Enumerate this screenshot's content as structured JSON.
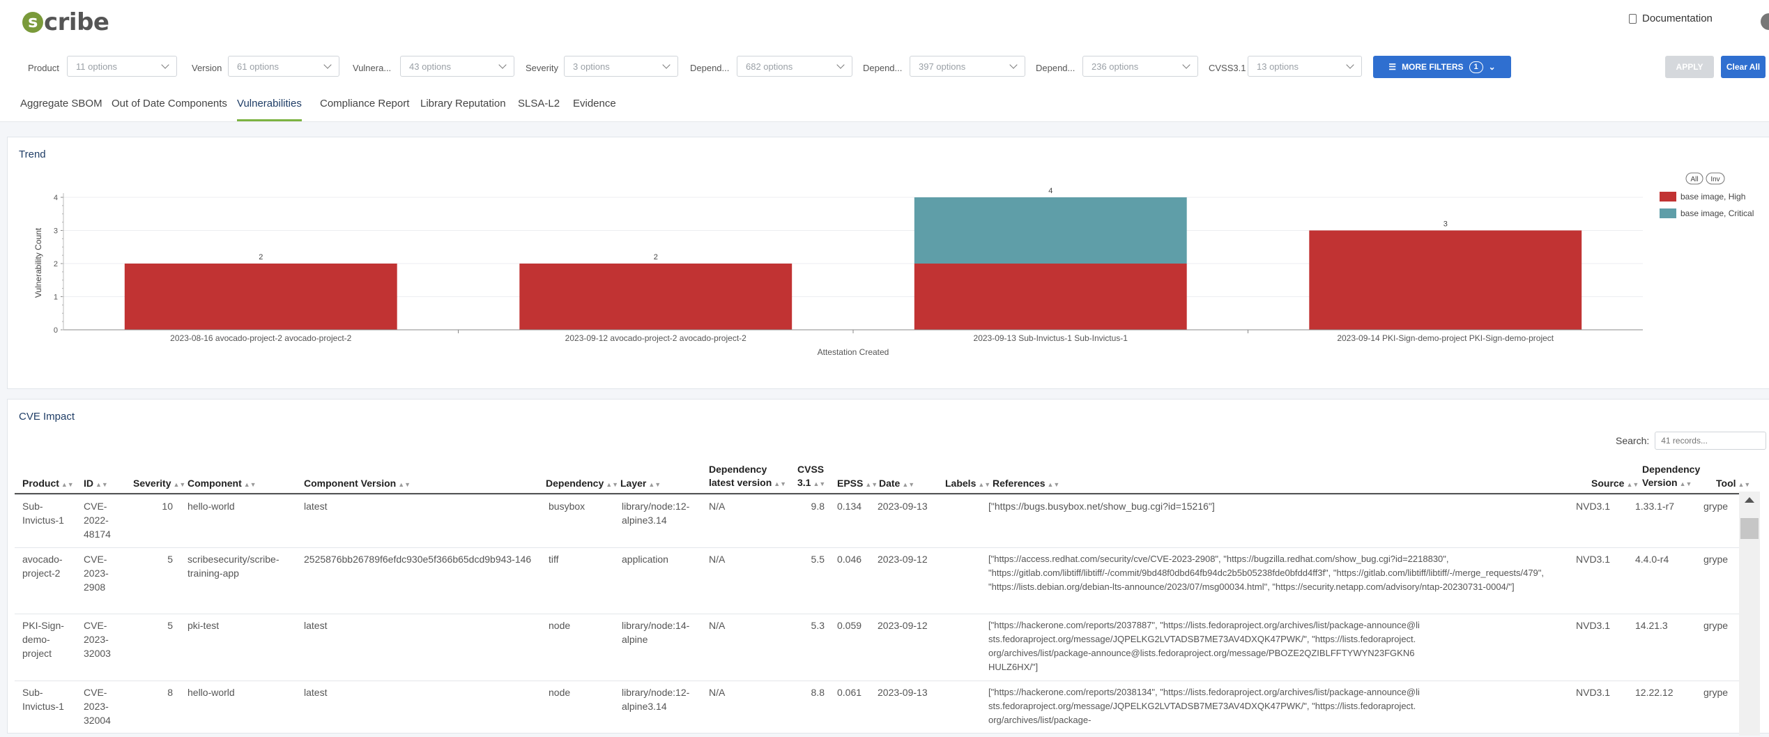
{
  "header": {
    "logo_text": "cribe",
    "logo_letter": "s",
    "documentation_label": "Documentation"
  },
  "filters": [
    {
      "label": "Product",
      "value": "11 options"
    },
    {
      "label": "Version",
      "value": "61 options"
    },
    {
      "label": "Vulnera...",
      "value": "43 options"
    },
    {
      "label": "Severity",
      "value": "3 options"
    },
    {
      "label": "Depend...",
      "value": "682 options"
    },
    {
      "label": "Depend...",
      "value": "397 options"
    },
    {
      "label": "Depend...",
      "value": "236 options"
    },
    {
      "label": "CVSS3.1",
      "value": "13 options"
    }
  ],
  "buttons": {
    "more_filters": "MORE FILTERS",
    "more_filters_count": "1",
    "apply": "APPLY",
    "clear_all": "Clear All"
  },
  "tabs": [
    {
      "label": "Aggregate SBOM"
    },
    {
      "label": "Out of Date Components"
    },
    {
      "label": "Vulnerabilities",
      "active": true
    },
    {
      "label": "Compliance Report"
    },
    {
      "label": "Library Reputation"
    },
    {
      "label": "SLSA-L2"
    },
    {
      "label": "Evidence"
    }
  ],
  "trend": {
    "title": "Trend",
    "legend_all": "All",
    "legend_inv": "Inv",
    "chart_data": {
      "type": "bar",
      "stacked": true,
      "categories": [
        "2023-08-16 avocado-project-2 avocado-project-2",
        "2023-09-12 avocado-project-2 avocado-project-2",
        "2023-09-13 Sub-Invictus-1 Sub-Invictus-1",
        "2023-09-14 PKI-Sign-demo-project PKI-Sign-demo-project"
      ],
      "series": [
        {
          "name": "base image, High",
          "color": "#c13333",
          "values": [
            2,
            2,
            2,
            3
          ]
        },
        {
          "name": "base image, Critical",
          "color": "#5f9ea8",
          "values": [
            0,
            0,
            2,
            0
          ]
        }
      ],
      "totals": [
        "2",
        "2",
        "4",
        "3"
      ],
      "xlabel": "Attestation Created",
      "ylabel": "Vulnerability Count",
      "ylim": [
        0,
        4
      ],
      "yticks": [
        "0",
        "1",
        "2",
        "3",
        "4"
      ],
      "legend_position": "top-right",
      "grid": true
    }
  },
  "cve": {
    "title": "CVE Impact",
    "search_label": "Search:",
    "search_placeholder": "41 records...",
    "columns": [
      "Product",
      "ID",
      "Severity",
      "Component",
      "Component Version",
      "Dependency",
      "Layer",
      "Dependency latest version",
      "CVSS 3.1",
      "EPSS",
      "Date",
      "Labels",
      "References",
      "Source",
      "Dependency Version",
      "Tool"
    ],
    "rows": [
      {
        "product": "Sub-Invictus-1",
        "id": "CVE-2022-48174",
        "severity": "10",
        "component": "hello-world",
        "component_version": "latest",
        "dependency": "busybox",
        "layer": "library/node:12-alpine3.14",
        "dep_latest": "N/A",
        "cvss": "9.8",
        "epss": "0.134",
        "date": "2023-09-13",
        "labels": "",
        "references": "[\"https://bugs.busybox.net/show_bug.cgi?id=15216\"]",
        "source": "NVD3.1",
        "dep_version": "1.33.1-r7",
        "tool": "grype"
      },
      {
        "product": "avocado-project-2",
        "id": "CVE-2023-2908",
        "severity": "5",
        "component": "scribesecurity/scribe-training-app",
        "component_version": "2525876bb26789f6efdc930e5f366b65dcd9b943-146",
        "dependency": "tiff",
        "layer": "application",
        "dep_latest": "N/A",
        "cvss": "5.5",
        "epss": "0.046",
        "date": "2023-09-12",
        "labels": "",
        "references": "[\"https://access.redhat.com/security/cve/CVE-2023-2908\", \"https://bugzilla.redhat.com/show_bug.cgi?id=2218830\", \"https://gitlab.com/libtiff/libtiff/-/commit/9bd48f0dbd64fb94dc2b5b05238fde0bfdd4ff3f\", \"https://gitlab.com/libtiff/libtiff/-/merge_requests/479\", \"https://lists.debian.org/debian-lts-announce/2023/07/msg00034.html\", \"https://security.netapp.com/advisory/ntap-20230731-0004/\"]",
        "source": "NVD3.1",
        "dep_version": "4.4.0-r4",
        "tool": "grype"
      },
      {
        "product": "PKI-Sign-demo-project",
        "id": "CVE-2023-32003",
        "severity": "5",
        "component": "pki-test",
        "component_version": "latest",
        "dependency": "node",
        "layer": "library/node:14-alpine",
        "dep_latest": "N/A",
        "cvss": "5.3",
        "epss": "0.059",
        "date": "2023-09-12",
        "labels": "",
        "references": "[\"https://hackerone.com/reports/2037887\", \"https://lists.fedoraproject.org/archives/list/package-announce@lists.fedoraproject.org/message/JQPELKG2LVTADSB7ME73AV4DXQK47PWK/\", \"https://lists.fedoraproject.org/archives/list/package-announce@lists.fedoraproject.org/message/PBOZE2QZIBLFFTYWYN23FGKN6HULZ6HX/\"]",
        "source": "NVD3.1",
        "dep_version": "14.21.3",
        "tool": "grype"
      },
      {
        "product": "Sub-Invictus-1",
        "id": "CVE-2023-32004",
        "severity": "8",
        "component": "hello-world",
        "component_version": "latest",
        "dependency": "node",
        "layer": "library/node:12-alpine3.14",
        "dep_latest": "N/A",
        "cvss": "8.8",
        "epss": "0.061",
        "date": "2023-09-13",
        "labels": "",
        "references": "[\"https://hackerone.com/reports/2038134\", \"https://lists.fedoraproject.org/archives/list/package-announce@lists.fedoraproject.org/message/JQPELKG2LVTADSB7ME73AV4DXQK47PWK/\", \"https://lists.fedoraproject.org/archives/list/package-",
        "source": "NVD3.1",
        "dep_version": "12.22.12",
        "tool": "grype"
      }
    ]
  }
}
